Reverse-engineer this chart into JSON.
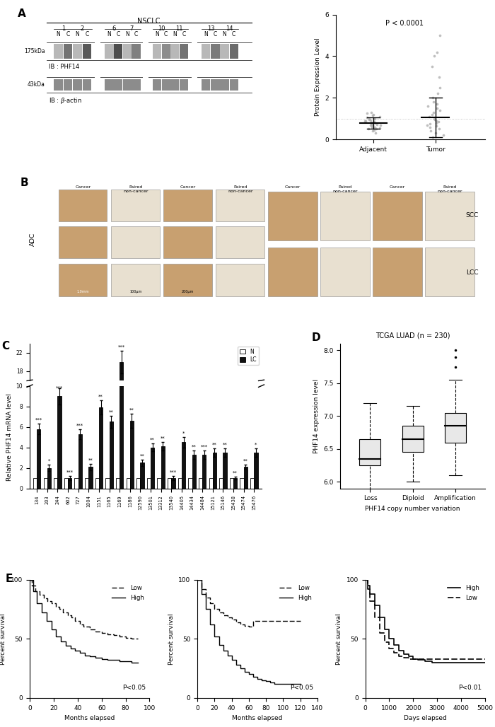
{
  "panel_A_scatter": {
    "adjacent_points": [
      0.3,
      0.4,
      0.5,
      0.55,
      0.6,
      0.65,
      0.7,
      0.72,
      0.75,
      0.78,
      0.8,
      0.82,
      0.85,
      0.88,
      0.9,
      0.92,
      0.95,
      0.98,
      1.0,
      1.05,
      1.1,
      1.15,
      1.2,
      1.25,
      1.3,
      0.45,
      0.52,
      0.58,
      0.67,
      0.73
    ],
    "tumor_points": [
      0.1,
      0.2,
      0.3,
      0.4,
      0.5,
      0.6,
      0.65,
      0.7,
      0.75,
      0.8,
      0.85,
      0.9,
      0.95,
      1.0,
      1.1,
      1.2,
      1.3,
      1.4,
      1.5,
      1.6,
      1.7,
      1.8,
      2.0,
      2.2,
      2.5,
      3.0,
      3.5,
      4.0,
      4.2,
      5.0
    ],
    "adjacent_mean": 0.78,
    "adjacent_sd": 0.28,
    "tumor_mean": 1.05,
    "tumor_sd": 0.95,
    "ylabel": "Protein Expression Level",
    "xlabel_adj": "Adjacent",
    "xlabel_tumor": "Tumor",
    "pvalue": "P < 0.0001",
    "ylim": [
      0,
      6
    ]
  },
  "panel_C_bars": {
    "samples": [
      "134",
      "203",
      "244",
      "602",
      "727",
      "1004",
      "1151",
      "1165",
      "1169",
      "1186",
      "12590",
      "13501",
      "13312",
      "13540",
      "14405",
      "14434",
      "14484",
      "15121",
      "15146",
      "15438",
      "15474",
      "15476"
    ],
    "N_values": [
      1,
      1,
      1,
      1,
      1,
      1,
      1,
      1,
      1,
      1,
      1,
      1,
      1,
      1,
      1,
      1,
      1,
      1,
      1,
      1,
      1,
      1
    ],
    "LC_values": [
      5.8,
      2.0,
      9.0,
      1.0,
      5.3,
      2.1,
      7.9,
      6.5,
      20.0,
      6.6,
      2.5,
      4.0,
      4.1,
      1.0,
      4.5,
      3.3,
      3.3,
      3.5,
      3.5,
      1.0,
      2.1,
      3.5
    ],
    "LC_errors": [
      0.5,
      0.3,
      0.8,
      0.2,
      0.5,
      0.3,
      0.7,
      0.6,
      2.5,
      0.7,
      0.3,
      0.4,
      0.4,
      0.2,
      0.5,
      0.4,
      0.4,
      0.4,
      0.4,
      0.15,
      0.2,
      0.4
    ],
    "significance": [
      "***",
      "*",
      "***",
      "***",
      "***",
      "**",
      "**",
      "**",
      "***",
      "**",
      "**",
      "**",
      "**",
      "***",
      "*",
      "**",
      "***",
      "**",
      "**",
      "**",
      "**",
      "*"
    ],
    "ylabel": "Relative PHF14 mRNA level"
  },
  "panel_D_box": {
    "title": "TCGA LUAD (n = 230)",
    "categories": [
      "Loss",
      "Diploid",
      "Amplification"
    ],
    "xlabel": "PHF14 copy number variation",
    "ylabel": "PHF14 expression level",
    "loss_stats": {
      "min": 5.5,
      "q1": 6.25,
      "median": 6.35,
      "q3": 6.65,
      "max": 7.2,
      "outliers": []
    },
    "diploid_stats": {
      "min": 6.0,
      "q1": 6.45,
      "median": 6.65,
      "q3": 6.85,
      "max": 7.15,
      "outliers": []
    },
    "amp_stats": {
      "min": 6.1,
      "q1": 6.6,
      "median": 6.85,
      "q3": 7.05,
      "max": 7.55,
      "outliers": [
        7.9,
        7.75,
        8.0
      ]
    },
    "ylim": [
      5.9,
      8.1
    ],
    "yticks": [
      6.0,
      6.5,
      7.0,
      7.5,
      8.0
    ]
  },
  "panel_E1": {
    "xlabel": "Months elapsed",
    "ylabel": "Percent survival",
    "pvalue": "P<0.05",
    "xlim": [
      0,
      100
    ],
    "ylim": [
      0,
      100
    ],
    "xticks": [
      0,
      20,
      40,
      60,
      80,
      100
    ],
    "yticks": [
      0,
      50,
      100
    ],
    "low_x": [
      0,
      2,
      5,
      8,
      12,
      15,
      18,
      22,
      25,
      28,
      32,
      35,
      38,
      42,
      45,
      50,
      55,
      60,
      65,
      70,
      75,
      80,
      85,
      90
    ],
    "low_y": [
      100,
      95,
      90,
      87,
      84,
      82,
      80,
      77,
      75,
      72,
      70,
      68,
      65,
      62,
      60,
      58,
      56,
      55,
      54,
      53,
      52,
      51,
      50,
      50
    ],
    "high_x": [
      0,
      3,
      6,
      10,
      14,
      18,
      22,
      26,
      30,
      34,
      38,
      42,
      46,
      50,
      55,
      60,
      65,
      70,
      75,
      80,
      85,
      90
    ],
    "high_y": [
      100,
      90,
      80,
      72,
      65,
      58,
      52,
      48,
      44,
      42,
      40,
      38,
      36,
      35,
      34,
      33,
      32,
      32,
      31,
      31,
      30,
      30
    ],
    "legend_order": [
      "Low",
      "High"
    ],
    "is_days": false
  },
  "panel_E2": {
    "xlabel": "Months elapsed",
    "ylabel": "Percent survival",
    "pvalue": "P<0.05",
    "xlim": [
      0,
      140
    ],
    "ylim": [
      0,
      100
    ],
    "xticks": [
      0,
      20,
      40,
      60,
      80,
      100,
      120,
      140
    ],
    "yticks": [
      0,
      50,
      100
    ],
    "low_x": [
      0,
      5,
      10,
      15,
      20,
      25,
      30,
      35,
      40,
      45,
      50,
      55,
      60,
      65,
      70,
      75,
      80,
      85,
      90,
      95,
      100,
      110,
      120
    ],
    "low_y": [
      100,
      92,
      85,
      80,
      75,
      72,
      70,
      68,
      66,
      64,
      62,
      61,
      60,
      65,
      65,
      65,
      65,
      65,
      65,
      65,
      65,
      65,
      65
    ],
    "high_x": [
      0,
      5,
      10,
      15,
      20,
      25,
      30,
      35,
      40,
      45,
      50,
      55,
      60,
      65,
      70,
      75,
      80,
      85,
      90,
      95,
      100,
      110,
      120
    ],
    "high_y": [
      100,
      88,
      75,
      62,
      52,
      45,
      40,
      36,
      32,
      28,
      25,
      22,
      20,
      18,
      16,
      15,
      14,
      13,
      12,
      12,
      12,
      12,
      12
    ],
    "legend_order": [
      "Low",
      "High"
    ],
    "is_days": false
  },
  "panel_E3": {
    "xlabel": "Days elapsed",
    "ylabel": "Percent survival",
    "pvalue": "P<0.01",
    "xlim": [
      0,
      5000
    ],
    "ylim": [
      0,
      100
    ],
    "xticks": [
      0,
      1000,
      2000,
      3000,
      4000,
      5000
    ],
    "yticks": [
      0,
      50,
      100
    ],
    "high_x": [
      0,
      100,
      200,
      400,
      600,
      800,
      1000,
      1200,
      1400,
      1600,
      1800,
      2000,
      2200,
      2500,
      2800,
      3000,
      3500,
      4000,
      5000
    ],
    "high_y": [
      100,
      95,
      88,
      78,
      68,
      58,
      50,
      45,
      40,
      37,
      35,
      33,
      32,
      31,
      30,
      30,
      30,
      30,
      30
    ],
    "low_x": [
      0,
      100,
      200,
      400,
      600,
      800,
      1000,
      1200,
      1400,
      1600,
      1800,
      2000,
      2500,
      3000,
      3500,
      4000,
      5000
    ],
    "low_y": [
      100,
      92,
      82,
      68,
      55,
      47,
      42,
      38,
      35,
      34,
      33,
      33,
      33,
      33,
      33,
      33,
      33
    ],
    "legend_order": [
      "High",
      "Low"
    ],
    "is_days": true
  }
}
